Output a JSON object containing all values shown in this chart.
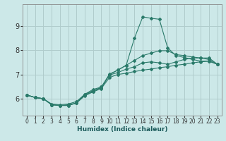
{
  "title": "",
  "xlabel": "Humidex (Indice chaleur)",
  "ylabel": "",
  "bg_color": "#cce8e8",
  "grid_color": "#b0cccc",
  "line_color": "#2a7a6a",
  "xlim": [
    -0.5,
    23.5
  ],
  "ylim": [
    5.3,
    9.9
  ],
  "xticks": [
    0,
    1,
    2,
    3,
    4,
    5,
    6,
    7,
    8,
    9,
    10,
    11,
    12,
    13,
    14,
    15,
    16,
    17,
    18,
    19,
    20,
    21,
    22,
    23
  ],
  "yticks": [
    6,
    7,
    8,
    9
  ],
  "line1_x": [
    0,
    1,
    2,
    3,
    4,
    5,
    6,
    7,
    8,
    9,
    10,
    11,
    12,
    13,
    14,
    15,
    16,
    17,
    18,
    19,
    20,
    21,
    22,
    23
  ],
  "line1_y": [
    6.15,
    6.05,
    6.0,
    5.75,
    5.72,
    5.72,
    5.82,
    6.18,
    6.33,
    6.45,
    7.0,
    7.18,
    7.38,
    8.5,
    9.38,
    9.32,
    9.28,
    8.1,
    7.78,
    7.7,
    7.62,
    7.55,
    7.55,
    7.42
  ],
  "line2_x": [
    0,
    1,
    2,
    3,
    4,
    5,
    6,
    7,
    8,
    9,
    10,
    11,
    12,
    13,
    14,
    15,
    16,
    17,
    18,
    19,
    20,
    21,
    22,
    23
  ],
  "line2_y": [
    6.15,
    6.05,
    6.0,
    5.75,
    5.72,
    5.75,
    5.82,
    6.12,
    6.28,
    6.42,
    6.88,
    7.0,
    7.05,
    7.12,
    7.18,
    7.22,
    7.28,
    7.32,
    7.38,
    7.42,
    7.48,
    7.52,
    7.55,
    7.42
  ],
  "line3_x": [
    0,
    1,
    2,
    3,
    4,
    5,
    6,
    7,
    8,
    9,
    10,
    11,
    12,
    13,
    14,
    15,
    16,
    17,
    18,
    19,
    20,
    21,
    22,
    23
  ],
  "line3_y": [
    6.15,
    6.05,
    6.0,
    5.78,
    5.75,
    5.78,
    5.88,
    6.18,
    6.38,
    6.48,
    6.98,
    7.08,
    7.22,
    7.32,
    7.48,
    7.52,
    7.48,
    7.42,
    7.52,
    7.62,
    7.68,
    7.68,
    7.68,
    7.42
  ],
  "line4_x": [
    0,
    1,
    2,
    3,
    4,
    5,
    6,
    7,
    8,
    9,
    10,
    11,
    12,
    13,
    14,
    15,
    16,
    17,
    18,
    19,
    20,
    21,
    22,
    23
  ],
  "line4_y": [
    6.15,
    6.05,
    6.0,
    5.75,
    5.72,
    5.72,
    5.82,
    6.15,
    6.3,
    6.48,
    7.02,
    7.18,
    7.38,
    7.58,
    7.78,
    7.88,
    7.98,
    7.98,
    7.82,
    7.78,
    7.72,
    7.68,
    7.62,
    7.42
  ]
}
